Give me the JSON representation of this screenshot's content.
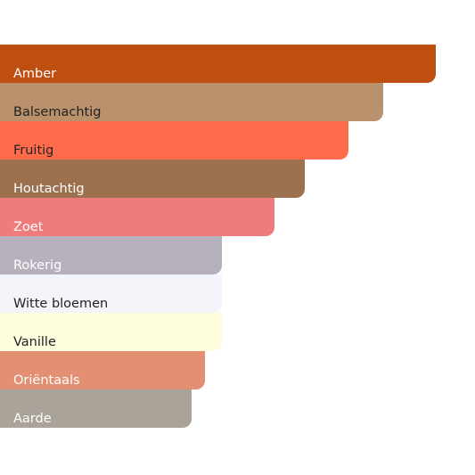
{
  "chart_data": {
    "type": "bar",
    "orientation": "horizontal",
    "categories": [
      "Amber",
      "Balsemachtig",
      "Fruitig",
      "Houtachtig",
      "Zoet",
      "Rokerig",
      "Witte bloemen",
      "Vanille",
      "Oriëntaals",
      "Aarde"
    ],
    "values": [
      100,
      88,
      80,
      70,
      63,
      51,
      51,
      51,
      47,
      44
    ],
    "colors": [
      "#bf4e11",
      "#b9916c",
      "#ff6b4b",
      "#9c7150",
      "#f07b7c",
      "#b6b0bd",
      "#f4f5fb",
      "#fefedf",
      "#e28f74",
      "#a9a39a"
    ],
    "label_colors": [
      "#ffffff",
      "#222222",
      "#222222",
      "#ffffff",
      "#ffffff",
      "#ffffff",
      "#222222",
      "#222222",
      "#ffffff",
      "#ffffff"
    ],
    "title": "",
    "xlabel": "",
    "ylabel": "",
    "xlim": [
      0,
      100
    ],
    "axes_visible": false,
    "grid": false,
    "legend": "none",
    "labels_inside_bars": true
  }
}
